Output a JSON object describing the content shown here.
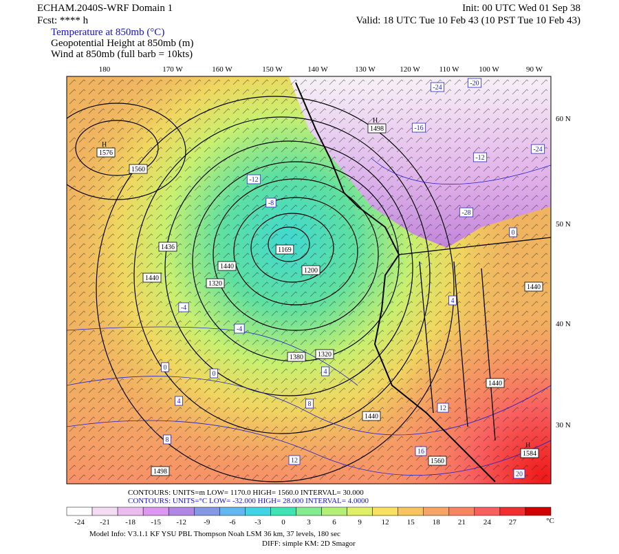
{
  "header": {
    "model": "ECHAM.2040S-WRF Domain 1",
    "init": "Init: 00 UTC Wed 01 Sep 38",
    "fcst": "Fcst: **** h",
    "valid": "Valid: 18 UTC Tue 10 Feb 43 (10 PST Tue 10 Feb 43)",
    "fields": [
      "Temperature at 850mb (°C)",
      "Geopotential Height at 850mb (m)",
      "Wind at 850mb (full barb = 10kts)"
    ]
  },
  "map": {
    "lon_labels": [
      "180",
      "170 W",
      "160 W",
      "150 W",
      "140 W",
      "130 W",
      "120 W",
      "110 W",
      "100 W",
      "90 W"
    ],
    "lat_labels": [
      "60 N",
      "50 N",
      "40 N",
      "30 N"
    ],
    "height_labels": [
      "1169",
      "1200",
      "1320",
      "1380",
      "1320",
      "1440",
      "1436",
      "1440",
      "1560",
      "1498",
      "1440",
      "1560",
      "1440",
      "1440"
    ],
    "highs": [
      {
        "mark": "H",
        "value": "1576"
      },
      {
        "mark": "H",
        "value": "1498"
      },
      {
        "mark": "H",
        "value": "1584"
      }
    ],
    "temp_labels": [
      "-12",
      "-8",
      "-4",
      "0",
      "4",
      "8",
      "4",
      "0",
      "-4",
      "8",
      "12",
      "16",
      "-24",
      "-20",
      "-16",
      "-12",
      "0",
      "4",
      "12",
      "20",
      "-24",
      "-28"
    ]
  },
  "contours": {
    "line1": "CONTOURS:  UNITS=m  LOW=   1170.0      HIGH=  1560.0      INTERVAL=   30.000",
    "line2": "CONTOURS:  UNITS=°C  LOW= -32.000      HIGH=  28.000      INTERVAL=   4.0000"
  },
  "colorbar": {
    "labels": [
      "-24",
      "-21",
      "-18",
      "-15",
      "-12",
      "-9",
      "-6",
      "-3",
      "0",
      "3",
      "6",
      "9",
      "12",
      "15",
      "18",
      "21",
      "24",
      "27"
    ],
    "unit": "°C",
    "colors": [
      "#ffffff",
      "#f4dcf4",
      "#ecbcf0",
      "#dc98f0",
      "#b088e4",
      "#8498e4",
      "#60b8f0",
      "#40d4e4",
      "#40e4b4",
      "#84ec90",
      "#b4f074",
      "#e0f064",
      "#f8e060",
      "#f8c460",
      "#f8a464",
      "#f88464",
      "#f86060",
      "#f03030",
      "#d00000"
    ]
  },
  "footer": {
    "line1": "Model Info: V3.1.1    KF     YSU PBL   Thompson     Noah LSM   36 km,    37 levels,   180 sec",
    "line2": "DIFF: simple KM: 2D Smagor"
  }
}
